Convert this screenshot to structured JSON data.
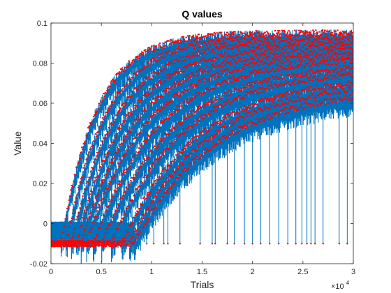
{
  "chart_data": {
    "type": "line",
    "title": "Q values",
    "xlabel": "Trials",
    "ylabel": "Value",
    "x_multiplier_label": "×10",
    "x_multiplier_exponent": "4",
    "xlim": [
      0,
      30000
    ],
    "ylim": [
      -0.02,
      0.1
    ],
    "x_ticks": [
      0,
      5000,
      10000,
      15000,
      20000,
      25000,
      30000
    ],
    "x_tick_labels": [
      "0",
      "0.5",
      "1",
      "1.5",
      "2",
      "2.5",
      "3"
    ],
    "y_ticks": [
      -0.02,
      0,
      0.02,
      0.04,
      0.06,
      0.08,
      0.1
    ],
    "y_tick_labels": [
      "-0.02",
      "0",
      "0.02",
      "0.04",
      "0.06",
      "0.08",
      "0.1"
    ],
    "grid": false,
    "line_color": "#0072BD",
    "marker_color": "#FF0000",
    "series": [
      {
        "onset": 1000,
        "rise": 3500,
        "asymptote": 0.095,
        "floor": -0.01
      },
      {
        "onset": 1500,
        "rise": 4000,
        "asymptote": 0.093,
        "floor": -0.01
      },
      {
        "onset": 2000,
        "rise": 4500,
        "asymptote": 0.091,
        "floor": -0.01
      },
      {
        "onset": 2500,
        "rise": 5000,
        "asymptote": 0.089,
        "floor": -0.01
      },
      {
        "onset": 3000,
        "rise": 5500,
        "asymptote": 0.087,
        "floor": -0.01
      },
      {
        "onset": 3500,
        "rise": 6000,
        "asymptote": 0.085,
        "floor": -0.01
      },
      {
        "onset": 4200,
        "rise": 6500,
        "asymptote": 0.083,
        "floor": -0.01
      },
      {
        "onset": 5000,
        "rise": 7000,
        "asymptote": 0.08,
        "floor": -0.01
      },
      {
        "onset": 6000,
        "rise": 7000,
        "asymptote": 0.077,
        "floor": -0.01
      },
      {
        "onset": 7000,
        "rise": 7500,
        "asymptote": 0.074,
        "floor": -0.01
      },
      {
        "onset": 7800,
        "rise": 7500,
        "asymptote": 0.071,
        "floor": -0.01
      },
      {
        "onset": 8200,
        "rise": 8000,
        "asymptote": 0.068,
        "floor": -0.01
      }
    ],
    "spike_drops_x": [
      9500,
      10200,
      11200,
      11600,
      12800,
      14800,
      16000,
      16300,
      17500,
      18200,
      19200,
      20000,
      20800,
      21700,
      22600,
      23500,
      24300,
      24900,
      25400,
      25800,
      26200,
      27000,
      28600,
      29400
    ]
  }
}
